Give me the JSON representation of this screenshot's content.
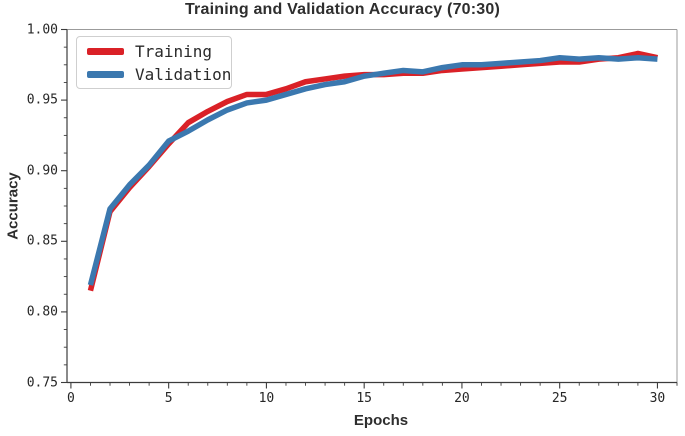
{
  "figure": {
    "background": "#ffffff"
  },
  "chart_data": {
    "type": "line",
    "title": "Training and Validation Accuracy (70:30)",
    "xlabel": "Epochs",
    "ylabel": "Accuracy",
    "xlim": [
      -0.2,
      31.0
    ],
    "ylim": [
      0.75,
      1.0
    ],
    "xticks": [
      0,
      5,
      10,
      15,
      20,
      25,
      30
    ],
    "xtick_labels": [
      "0",
      "5",
      "10",
      "15",
      "20",
      "25",
      "30"
    ],
    "yticks": [
      1.0,
      0.95,
      0.9,
      0.85,
      0.8,
      0.75
    ],
    "ytick_labels": [
      "1.00",
      "0.95",
      "0.90",
      "0.85",
      "0.80",
      "0.75"
    ],
    "x_minor_step": 1,
    "y_minor_step": 0.0125,
    "grid": false,
    "legend_position": "upper-left",
    "x": [
      1,
      2,
      3,
      4,
      5,
      6,
      7,
      8,
      9,
      10,
      11,
      12,
      13,
      14,
      15,
      16,
      17,
      18,
      19,
      20,
      21,
      22,
      23,
      24,
      25,
      26,
      27,
      28,
      29,
      30
    ],
    "series": [
      {
        "name": "Training",
        "color": "#da2127",
        "values": [
          0.815,
          0.871,
          0.888,
          0.903,
          0.919,
          0.934,
          0.942,
          0.949,
          0.954,
          0.954,
          0.958,
          0.963,
          0.965,
          0.967,
          0.968,
          0.968,
          0.969,
          0.969,
          0.971,
          0.972,
          0.973,
          0.974,
          0.975,
          0.976,
          0.977,
          0.977,
          0.979,
          0.98,
          0.983,
          0.98
        ]
      },
      {
        "name": "Validation",
        "color": "#3b78af",
        "values": [
          0.819,
          0.873,
          0.89,
          0.904,
          0.921,
          0.928,
          0.936,
          0.943,
          0.948,
          0.95,
          0.954,
          0.958,
          0.961,
          0.963,
          0.967,
          0.969,
          0.971,
          0.97,
          0.973,
          0.975,
          0.975,
          0.976,
          0.977,
          0.978,
          0.98,
          0.979,
          0.98,
          0.979,
          0.98,
          0.979
        ]
      }
    ],
    "colors": {
      "axis_spine_main": "#3c3c3c",
      "axis_spine_secondary": "#9b9b9b",
      "tick": "#3c3c3c",
      "tick_label": "#262626",
      "title_text": "#2e2e2e"
    }
  }
}
